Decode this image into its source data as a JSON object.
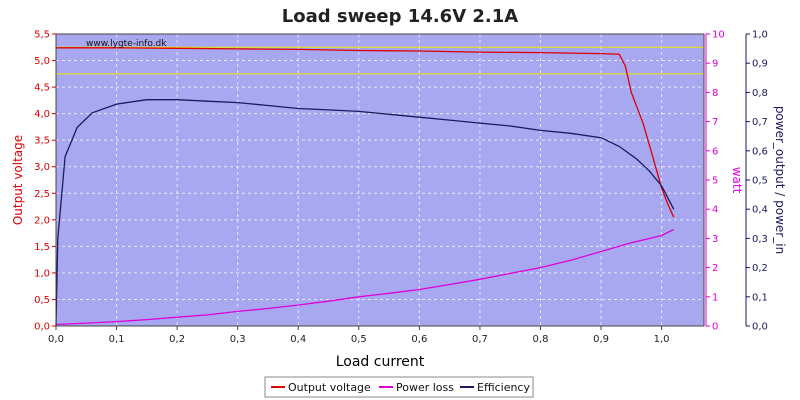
{
  "chart_data": {
    "type": "line",
    "title": "Load sweep 14.6V 2.1A",
    "watermark": "www.lygte-info.dk",
    "xlabel": "Load current",
    "xlim": [
      0,
      1.07
    ],
    "x_ticks": [
      "0,0",
      "0,1",
      "0,2",
      "0,3",
      "0,4",
      "0,5",
      "0,6",
      "0,7",
      "0,8",
      "0,9",
      "1,0"
    ],
    "y_left": {
      "label": "Output voltage",
      "lim": [
        0,
        5.5
      ],
      "color": "#dd0000",
      "ticks": [
        "0,0",
        "0,5",
        "1,0",
        "1,5",
        "2,0",
        "2,5",
        "3,0",
        "3,5",
        "4,0",
        "4,5",
        "5,0",
        "5,5"
      ]
    },
    "y_mid": {
      "label": "watt",
      "lim": [
        0,
        10
      ],
      "color": "#dd00dd",
      "ticks": [
        "0",
        "1",
        "2",
        "3",
        "4",
        "5",
        "6",
        "7",
        "8",
        "9",
        "10"
      ]
    },
    "y_right": {
      "label": "power_output / power_in",
      "lim": [
        0,
        1.0
      ],
      "color": "#1a1a5e",
      "ticks": [
        "0,0",
        "0,1",
        "0,2",
        "0,3",
        "0,4",
        "0,5",
        "0,6",
        "0,7",
        "0,8",
        "0,9",
        "1,0"
      ]
    },
    "reference_lines_left": [
      5.25,
      4.75
    ],
    "reference_color": "#e8e800",
    "grid": true,
    "legend_position": "bottom-center",
    "series": [
      {
        "name": "Output voltage",
        "axis": "left",
        "color": "#dd0000",
        "points": [
          [
            0,
            5.24
          ],
          [
            0.1,
            5.24
          ],
          [
            0.2,
            5.23
          ],
          [
            0.3,
            5.22
          ],
          [
            0.4,
            5.21
          ],
          [
            0.5,
            5.19
          ],
          [
            0.6,
            5.18
          ],
          [
            0.7,
            5.16
          ],
          [
            0.8,
            5.15
          ],
          [
            0.9,
            5.13
          ],
          [
            0.93,
            5.12
          ],
          [
            0.94,
            4.9
          ],
          [
            0.95,
            4.4
          ],
          [
            0.96,
            4.1
          ],
          [
            0.97,
            3.8
          ],
          [
            0.98,
            3.4
          ],
          [
            0.99,
            3.0
          ],
          [
            1.0,
            2.6
          ],
          [
            1.01,
            2.3
          ],
          [
            1.02,
            2.05
          ]
        ]
      },
      {
        "name": "Power loss",
        "axis": "mid",
        "color": "#dd00dd",
        "points": [
          [
            0,
            0.05
          ],
          [
            0.05,
            0.1
          ],
          [
            0.1,
            0.15
          ],
          [
            0.15,
            0.22
          ],
          [
            0.2,
            0.3
          ],
          [
            0.25,
            0.38
          ],
          [
            0.3,
            0.5
          ],
          [
            0.35,
            0.6
          ],
          [
            0.4,
            0.72
          ],
          [
            0.45,
            0.85
          ],
          [
            0.5,
            1.0
          ],
          [
            0.55,
            1.12
          ],
          [
            0.6,
            1.25
          ],
          [
            0.65,
            1.42
          ],
          [
            0.7,
            1.6
          ],
          [
            0.75,
            1.8
          ],
          [
            0.8,
            2.0
          ],
          [
            0.85,
            2.25
          ],
          [
            0.9,
            2.55
          ],
          [
            0.95,
            2.85
          ],
          [
            1.0,
            3.1
          ],
          [
            1.02,
            3.3
          ]
        ]
      },
      {
        "name": "Efficiency",
        "axis": "right",
        "color": "#1a1a5e",
        "points": [
          [
            0,
            0.0
          ],
          [
            0.003,
            0.3
          ],
          [
            0.015,
            0.58
          ],
          [
            0.035,
            0.68
          ],
          [
            0.06,
            0.73
          ],
          [
            0.1,
            0.76
          ],
          [
            0.15,
            0.775
          ],
          [
            0.2,
            0.775
          ],
          [
            0.25,
            0.77
          ],
          [
            0.3,
            0.765
          ],
          [
            0.35,
            0.755
          ],
          [
            0.4,
            0.745
          ],
          [
            0.45,
            0.74
          ],
          [
            0.5,
            0.735
          ],
          [
            0.55,
            0.725
          ],
          [
            0.6,
            0.715
          ],
          [
            0.65,
            0.705
          ],
          [
            0.7,
            0.695
          ],
          [
            0.75,
            0.685
          ],
          [
            0.8,
            0.67
          ],
          [
            0.85,
            0.66
          ],
          [
            0.9,
            0.645
          ],
          [
            0.93,
            0.615
          ],
          [
            0.96,
            0.57
          ],
          [
            0.98,
            0.53
          ],
          [
            1.0,
            0.48
          ],
          [
            1.02,
            0.4
          ]
        ]
      }
    ]
  }
}
